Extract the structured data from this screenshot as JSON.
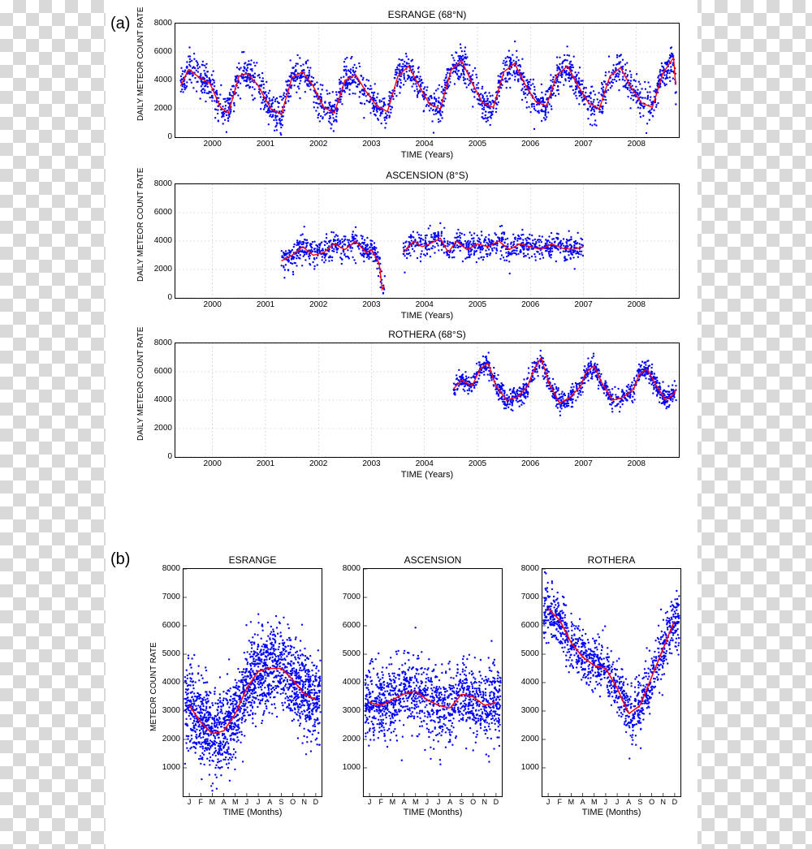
{
  "section_labels": {
    "a": "(a)",
    "b": "(b)"
  },
  "colors": {
    "scatter": "#0000ff",
    "line": "#ff0000",
    "grid": "#b0b0b0",
    "axis": "#000000",
    "tick_text": "#000000",
    "title_text": "#000000",
    "bg": "#ffffff",
    "checker_light": "#ffffff",
    "checker_dark": "#d9d9d9"
  },
  "typography": {
    "title_fontsize": 12,
    "tick_fontsize": 10,
    "axis_label_fontsize": 10,
    "section_label_fontsize": 20
  },
  "panel_a": {
    "x_label": "TIME (Years)",
    "y_label": "DAILY METEOR COUNT RATE",
    "xlim": [
      1999.3,
      2008.8
    ],
    "xticks": [
      2000,
      2001,
      2002,
      2003,
      2004,
      2005,
      2006,
      2007,
      2008
    ],
    "ylim": [
      0,
      8000
    ],
    "yticks": [
      0,
      2000,
      4000,
      6000,
      8000
    ],
    "grid": true,
    "grid_style": "dotted",
    "marker": {
      "shape": "circle",
      "size": 2,
      "color": "#0000ff"
    },
    "line": {
      "width": 1.4,
      "color": "#ff0000"
    },
    "plots": [
      {
        "title": "ESRANGE (68°N)",
        "data_range": [
          1999.4,
          2008.75
        ],
        "trend": [
          [
            1999.4,
            3600
          ],
          [
            1999.55,
            4800
          ],
          [
            1999.75,
            4200
          ],
          [
            1999.95,
            3800
          ],
          [
            2000.15,
            2100
          ],
          [
            2000.3,
            1700
          ],
          [
            2000.5,
            4300
          ],
          [
            2000.65,
            4500
          ],
          [
            2000.85,
            3700
          ],
          [
            2001.1,
            2000
          ],
          [
            2001.3,
            1600
          ],
          [
            2001.5,
            4200
          ],
          [
            2001.7,
            4600
          ],
          [
            2001.9,
            3600
          ],
          [
            2002.1,
            2100
          ],
          [
            2002.3,
            1700
          ],
          [
            2002.5,
            4000
          ],
          [
            2002.7,
            4400
          ],
          [
            2002.9,
            3200
          ],
          [
            2003.1,
            2200
          ],
          [
            2003.3,
            1800
          ],
          [
            2003.5,
            4300
          ],
          [
            2003.7,
            5000
          ],
          [
            2003.9,
            3600
          ],
          [
            2004.1,
            2300
          ],
          [
            2004.3,
            2000
          ],
          [
            2004.5,
            4700
          ],
          [
            2004.7,
            5400
          ],
          [
            2004.9,
            3800
          ],
          [
            2005.1,
            2400
          ],
          [
            2005.3,
            2100
          ],
          [
            2005.5,
            4600
          ],
          [
            2005.7,
            5200
          ],
          [
            2005.9,
            3700
          ],
          [
            2006.1,
            2500
          ],
          [
            2006.3,
            2200
          ],
          [
            2006.5,
            4400
          ],
          [
            2006.7,
            5000
          ],
          [
            2006.9,
            3600
          ],
          [
            2007.1,
            2400
          ],
          [
            2007.3,
            2000
          ],
          [
            2007.5,
            4300
          ],
          [
            2007.7,
            4900
          ],
          [
            2007.9,
            3500
          ],
          [
            2008.1,
            2400
          ],
          [
            2008.3,
            2100
          ],
          [
            2008.5,
            4500
          ],
          [
            2008.7,
            5600
          ],
          [
            2008.75,
            3200
          ]
        ],
        "scatter_sigma": 900,
        "n_per_year": 250
      },
      {
        "title": "ASCENSION (8°S)",
        "data_range": [
          2001.3,
          2007.0
        ],
        "gaps": [
          [
            2003.25,
            2003.6
          ]
        ],
        "trend": [
          [
            2001.3,
            2600
          ],
          [
            2001.5,
            3000
          ],
          [
            2001.7,
            3600
          ],
          [
            2001.9,
            3000
          ],
          [
            2002.1,
            3200
          ],
          [
            2002.3,
            3800
          ],
          [
            2002.5,
            3400
          ],
          [
            2002.7,
            4000
          ],
          [
            2002.9,
            3200
          ],
          [
            2003.0,
            3400
          ],
          [
            2003.15,
            2400
          ],
          [
            2003.2,
            600
          ],
          [
            2003.65,
            3400
          ],
          [
            2003.8,
            4000
          ],
          [
            2003.95,
            3600
          ],
          [
            2004.1,
            3800
          ],
          [
            2004.3,
            4200
          ],
          [
            2004.45,
            3200
          ],
          [
            2004.6,
            4000
          ],
          [
            2004.8,
            3400
          ],
          [
            2005.0,
            3800
          ],
          [
            2005.2,
            3600
          ],
          [
            2005.4,
            4000
          ],
          [
            2005.6,
            3400
          ],
          [
            2005.8,
            3800
          ],
          [
            2006.0,
            3600
          ],
          [
            2006.2,
            3400
          ],
          [
            2006.4,
            3800
          ],
          [
            2006.6,
            3500
          ],
          [
            2006.8,
            3400
          ],
          [
            2007.0,
            3600
          ]
        ],
        "scatter_sigma": 700,
        "n_per_year": 220
      },
      {
        "title": "ROTHERA (68°S)",
        "data_range": [
          2004.55,
          2008.75
        ],
        "trend": [
          [
            2004.55,
            4800
          ],
          [
            2004.7,
            5400
          ],
          [
            2004.9,
            5000
          ],
          [
            2005.05,
            6200
          ],
          [
            2005.2,
            6600
          ],
          [
            2005.35,
            5000
          ],
          [
            2005.55,
            4000
          ],
          [
            2005.75,
            4200
          ],
          [
            2005.95,
            5000
          ],
          [
            2006.05,
            6000
          ],
          [
            2006.2,
            7000
          ],
          [
            2006.35,
            5200
          ],
          [
            2006.55,
            3800
          ],
          [
            2006.75,
            4200
          ],
          [
            2006.95,
            5000
          ],
          [
            2007.05,
            6000
          ],
          [
            2007.2,
            6400
          ],
          [
            2007.35,
            5200
          ],
          [
            2007.55,
            4000
          ],
          [
            2007.75,
            4200
          ],
          [
            2007.95,
            4800
          ],
          [
            2008.05,
            5800
          ],
          [
            2008.2,
            6200
          ],
          [
            2008.35,
            5200
          ],
          [
            2008.55,
            4000
          ],
          [
            2008.7,
            4400
          ],
          [
            2008.75,
            4800
          ]
        ],
        "scatter_sigma": 550,
        "n_per_year": 260
      }
    ]
  },
  "panel_b": {
    "x_label": "TIME (Months)",
    "y_label": "METEOR COUNT RATE",
    "xlim": [
      0.5,
      12.5
    ],
    "xtick_labels": [
      "J",
      "F",
      "M",
      "A",
      "M",
      "J",
      "J",
      "A",
      "S",
      "O",
      "N",
      "D"
    ],
    "ylim": [
      0,
      8000
    ],
    "yticks": [
      1000,
      2000,
      3000,
      4000,
      5000,
      6000,
      7000,
      8000
    ],
    "marker": {
      "shape": "circle",
      "size": 2,
      "color": "#0000ff"
    },
    "line": {
      "width": 1.6,
      "color": "#ff0000"
    },
    "plots": [
      {
        "title": "ESRANGE",
        "trend": [
          [
            1,
            3200
          ],
          [
            2,
            2600
          ],
          [
            3,
            2200
          ],
          [
            4,
            2300
          ],
          [
            5,
            2900
          ],
          [
            6,
            3800
          ],
          [
            7,
            4400
          ],
          [
            8,
            4500
          ],
          [
            9,
            4500
          ],
          [
            10,
            4100
          ],
          [
            11,
            3600
          ],
          [
            12,
            3400
          ]
        ],
        "scatter_sigma": 1100,
        "n_points": 1900
      },
      {
        "title": "ASCENSION",
        "trend": [
          [
            1,
            3300
          ],
          [
            2,
            3200
          ],
          [
            3,
            3400
          ],
          [
            4,
            3600
          ],
          [
            5,
            3700
          ],
          [
            6,
            3400
          ],
          [
            7,
            3200
          ],
          [
            8,
            3100
          ],
          [
            9,
            3600
          ],
          [
            10,
            3500
          ],
          [
            11,
            3200
          ],
          [
            12,
            3300
          ]
        ],
        "scatter_sigma": 900,
        "n_points": 1300
      },
      {
        "title": "ROTHERA",
        "trend": [
          [
            1,
            6600
          ],
          [
            2,
            6200
          ],
          [
            3,
            5400
          ],
          [
            4,
            4900
          ],
          [
            5,
            4600
          ],
          [
            6,
            4500
          ],
          [
            7,
            3800
          ],
          [
            8,
            2900
          ],
          [
            9,
            3200
          ],
          [
            10,
            4200
          ],
          [
            11,
            5200
          ],
          [
            12,
            6200
          ]
        ],
        "scatter_sigma": 700,
        "n_points": 1100
      }
    ]
  }
}
